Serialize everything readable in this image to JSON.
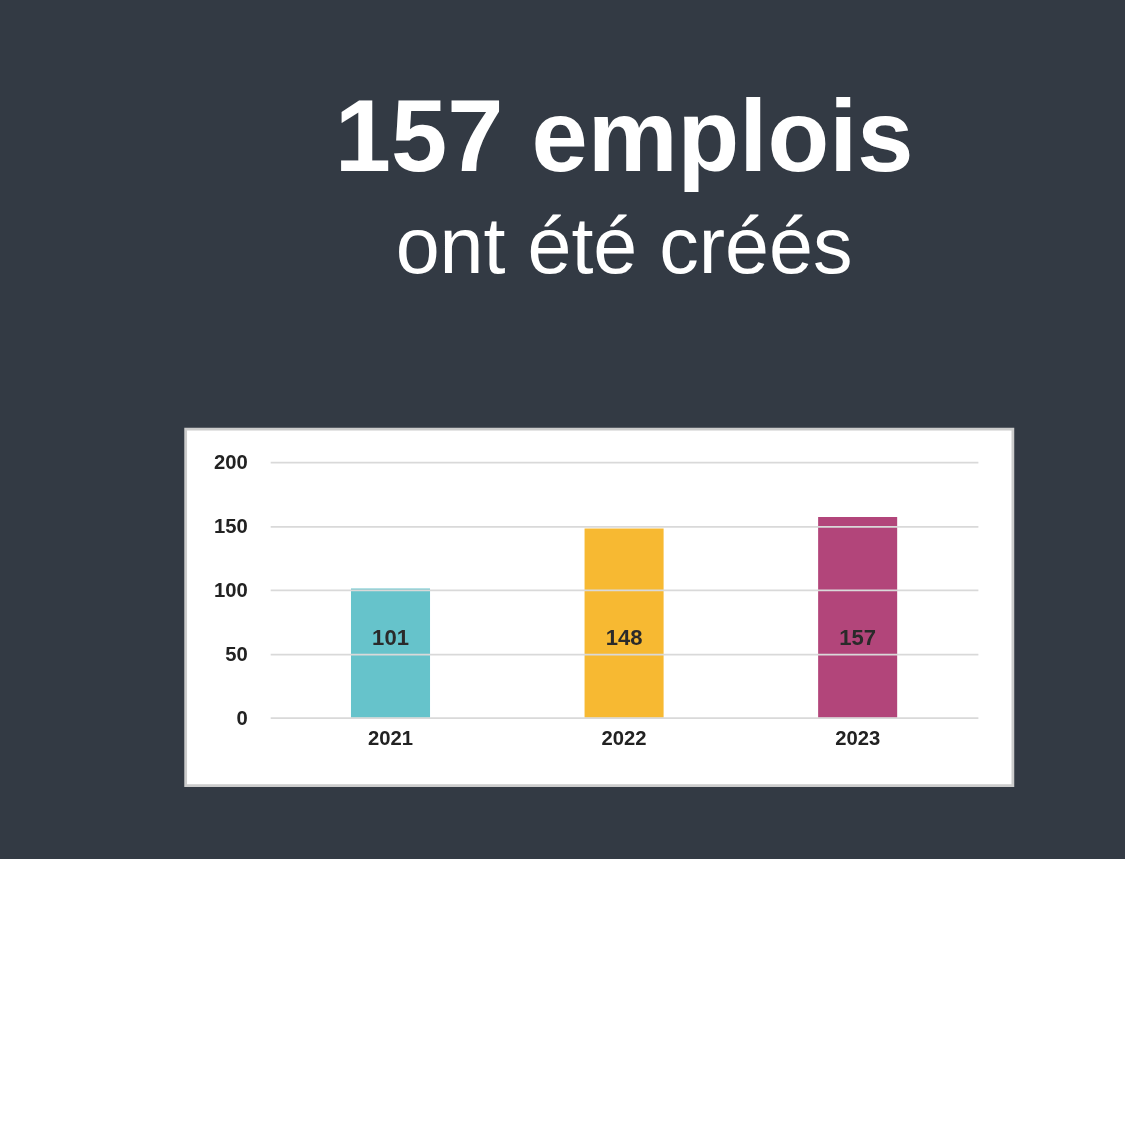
{
  "chart_data": {
    "type": "bar",
    "title": "157 emplois",
    "subtitle": "ont été créés",
    "categories": [
      "2021",
      "2022",
      "2023"
    ],
    "values": [
      101,
      148,
      157
    ],
    "colors": [
      "#66c3cb",
      "#f7b932",
      "#b2457a"
    ],
    "ylim": [
      0,
      200
    ],
    "yticks": [
      0,
      50,
      100,
      150,
      200
    ],
    "grid": "y",
    "data_labels": true,
    "legend": false
  }
}
